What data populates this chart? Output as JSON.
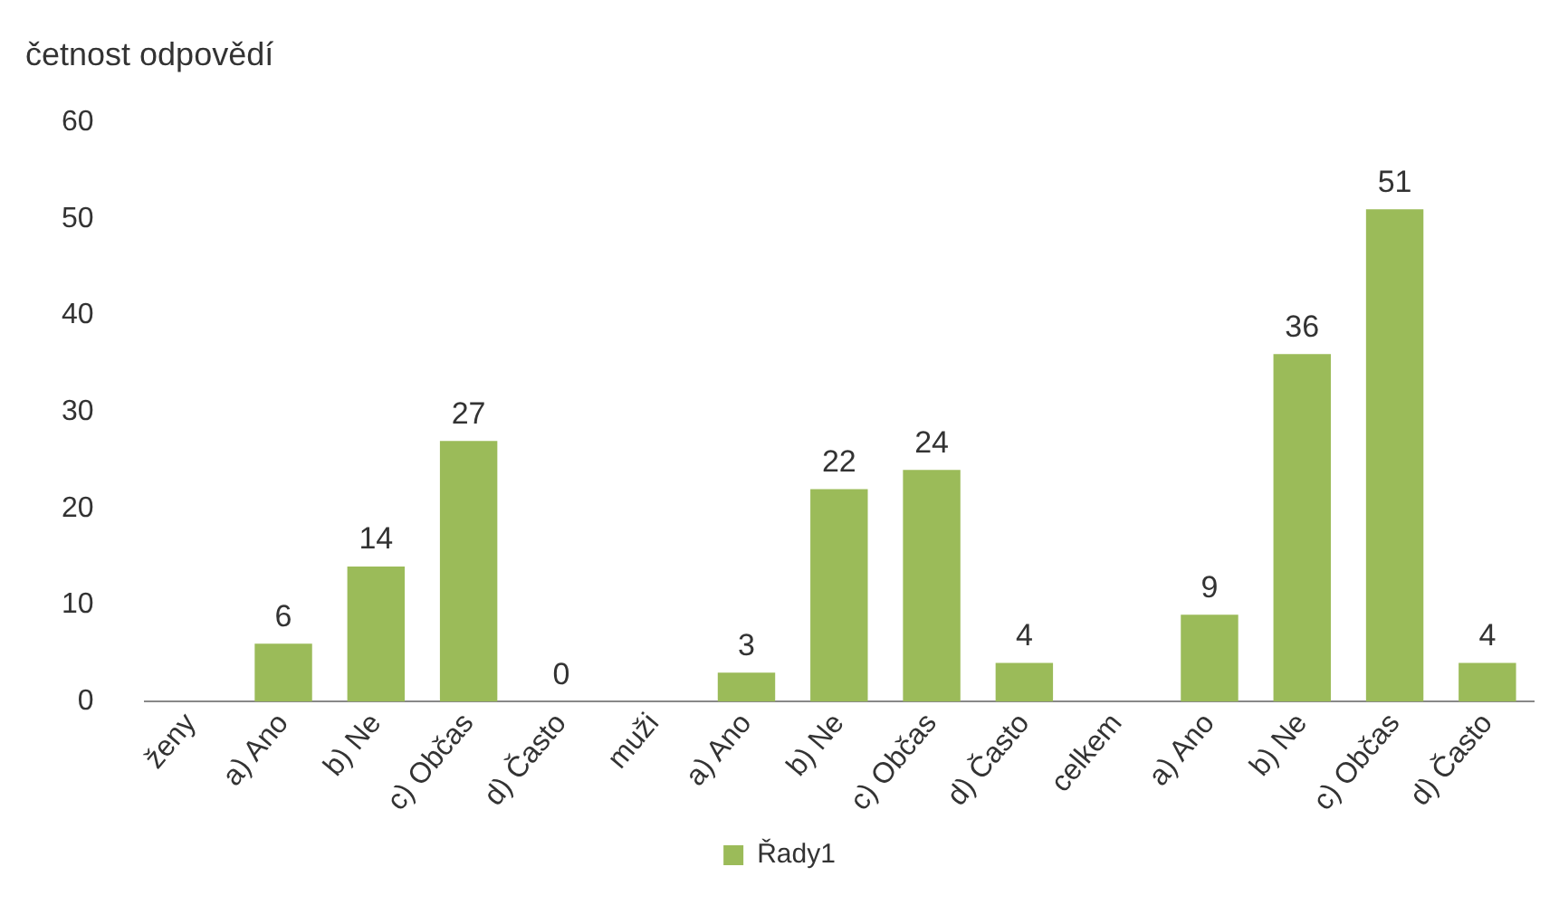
{
  "chart_data": {
    "type": "bar",
    "title": "četnost odpovědí",
    "categories": [
      "ženy",
      "a) Ano",
      "b) Ne",
      "c) Občas",
      "d) Často",
      "muži",
      "a) Ano",
      "b) Ne",
      "c) Občas",
      "d) Často",
      "celkem",
      "a) Ano",
      "b) Ne",
      "c) Občas",
      "d) Často"
    ],
    "series": [
      {
        "name": "Řady1",
        "color": "#9bbb59",
        "values": [
          null,
          6,
          14,
          27,
          0,
          null,
          3,
          22,
          24,
          4,
          null,
          9,
          36,
          51,
          4
        ]
      }
    ],
    "ylim": [
      0,
      60
    ],
    "yticks": [
      0,
      10,
      20,
      30,
      40,
      50,
      60
    ],
    "grid": false,
    "legend": "bottom",
    "data_labels": true
  }
}
